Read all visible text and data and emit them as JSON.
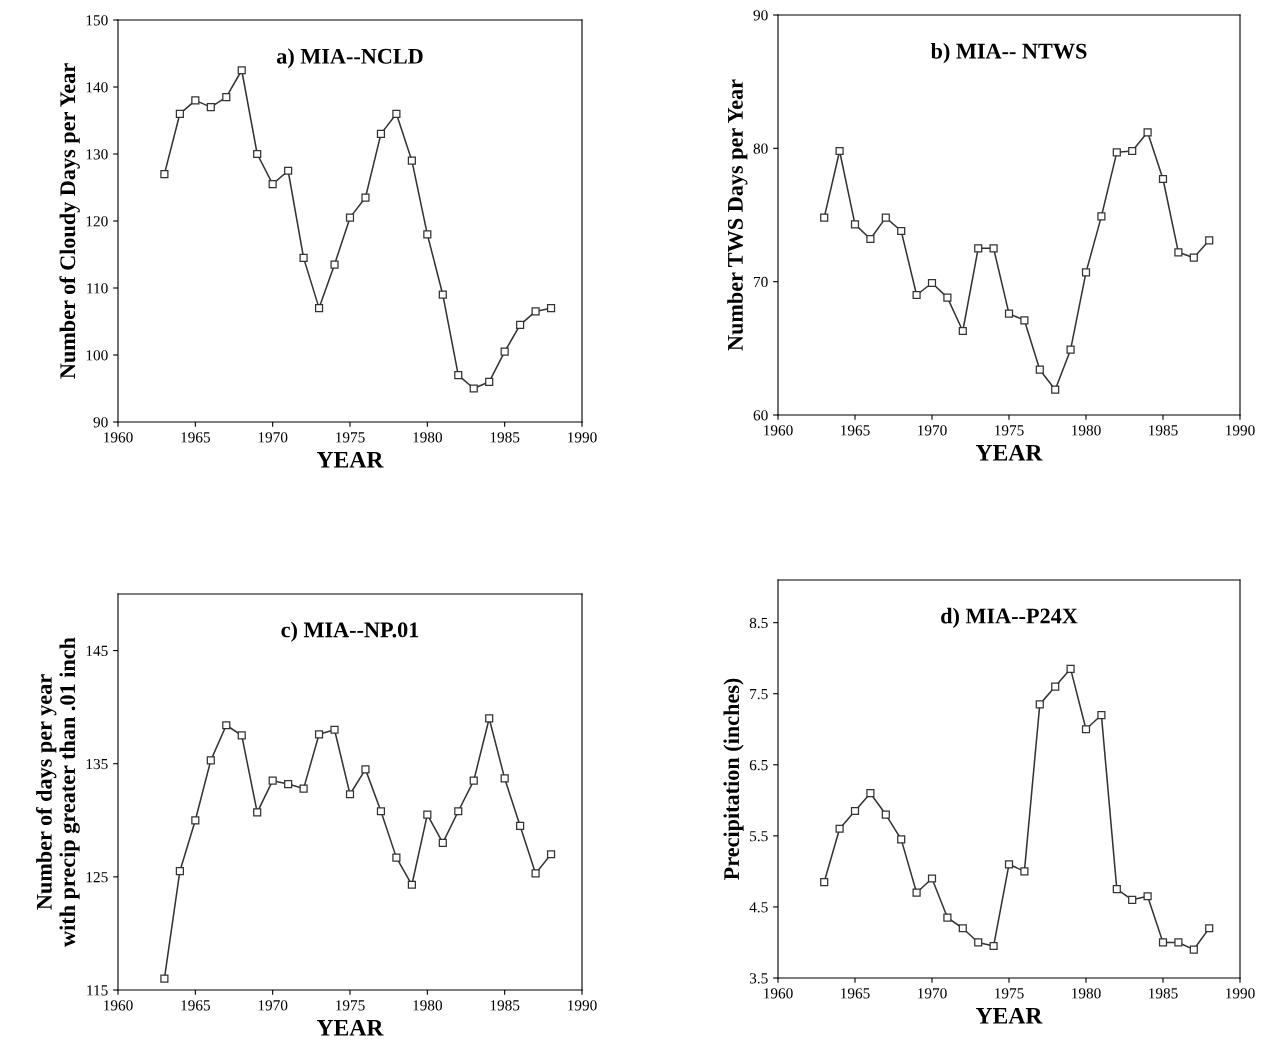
{
  "chart_data": [
    {
      "type": "line",
      "title": "a) MIA--NCLD",
      "xlabel": "YEAR",
      "ylabel": "Number of Cloudy Days per Year",
      "x": [
        1963,
        1964,
        1965,
        1966,
        1967,
        1968,
        1969,
        1970,
        1971,
        1972,
        1973,
        1974,
        1975,
        1976,
        1977,
        1978,
        1979,
        1980,
        1981,
        1982,
        1983,
        1984,
        1985,
        1986,
        1987,
        1988
      ],
      "series": [
        {
          "color": "#333333",
          "values": [
            127,
            136,
            138,
            137,
            138.5,
            142.5,
            130,
            125.5,
            127.5,
            114.5,
            107,
            113.5,
            120.5,
            123.5,
            133,
            136,
            129,
            118,
            109,
            97,
            95,
            96,
            100.5,
            104.5,
            106.5,
            107
          ]
        }
      ],
      "xlim": [
        1960,
        1990
      ],
      "xticks": [
        1960,
        1965,
        1970,
        1975,
        1980,
        1985,
        1990
      ],
      "ylim": [
        90,
        150
      ],
      "yticks": [
        90,
        100,
        110,
        120,
        130,
        140,
        150
      ],
      "marker": "square",
      "line_style": "solid",
      "grid": false
    },
    {
      "type": "line",
      "title": "b) MIA-- NTWS",
      "xlabel": "YEAR",
      "ylabel": "Number TWS Days per Year",
      "x": [
        1963,
        1964,
        1965,
        1966,
        1967,
        1968,
        1969,
        1970,
        1971,
        1972,
        1973,
        1974,
        1975,
        1976,
        1977,
        1978,
        1979,
        1980,
        1981,
        1982,
        1983,
        1984,
        1985,
        1986,
        1987,
        1988
      ],
      "series": [
        {
          "color": "#333333",
          "values": [
            74.8,
            79.8,
            74.3,
            73.2,
            74.8,
            73.8,
            69,
            69.9,
            68.8,
            66.3,
            72.5,
            72.5,
            67.6,
            67.1,
            63.4,
            61.9,
            64.9,
            70.7,
            74.9,
            79.7,
            79.8,
            81.2,
            77.7,
            72.2,
            71.8,
            73.1
          ]
        }
      ],
      "xlim": [
        1960,
        1990
      ],
      "xticks": [
        1960,
        1965,
        1970,
        1975,
        1980,
        1985,
        1990
      ],
      "ylim": [
        60,
        90
      ],
      "yticks": [
        60,
        70,
        80,
        90
      ],
      "marker": "square",
      "line_style": "solid",
      "grid": false
    },
    {
      "type": "line",
      "title": "c) MIA--NP.01",
      "xlabel": "YEAR",
      "ylabel": "Number of days per year\nwith precip greater than .01 inch",
      "x": [
        1963,
        1964,
        1965,
        1966,
        1967,
        1968,
        1969,
        1970,
        1971,
        1972,
        1973,
        1974,
        1975,
        1976,
        1977,
        1978,
        1979,
        1980,
        1981,
        1982,
        1983,
        1984,
        1985,
        1986,
        1987,
        1988
      ],
      "series": [
        {
          "color": "#333333",
          "values": [
            116,
            125.5,
            130,
            135.3,
            138.4,
            137.5,
            130.7,
            133.5,
            133.2,
            132.8,
            137.6,
            138,
            132.3,
            134.5,
            130.8,
            126.7,
            124.3,
            130.5,
            128,
            130.8,
            133.5,
            139,
            133.7,
            129.5,
            125.3,
            127
          ]
        }
      ],
      "xlim": [
        1960,
        1990
      ],
      "xticks": [
        1960,
        1965,
        1970,
        1975,
        1980,
        1985,
        1990
      ],
      "ylim": [
        115,
        150
      ],
      "yticks": [
        115,
        125,
        135,
        145
      ],
      "marker": "square",
      "line_style": "solid",
      "grid": false
    },
    {
      "type": "line",
      "title": "d) MIA--P24X",
      "xlabel": "YEAR",
      "ylabel": "Precipitation (inches)",
      "x": [
        1963,
        1964,
        1965,
        1966,
        1967,
        1968,
        1969,
        1970,
        1971,
        1972,
        1973,
        1974,
        1975,
        1976,
        1977,
        1978,
        1979,
        1980,
        1981,
        1982,
        1983,
        1984,
        1985,
        1986,
        1987,
        1988
      ],
      "series": [
        {
          "color": "#333333",
          "values": [
            4.85,
            5.6,
            5.85,
            6.1,
            5.8,
            5.45,
            4.7,
            4.9,
            4.35,
            4.2,
            4.0,
            3.95,
            5.1,
            5.0,
            7.35,
            7.6,
            7.85,
            7.0,
            7.2,
            4.75,
            4.6,
            4.65,
            4.0,
            4.0,
            3.9,
            4.2
          ]
        }
      ],
      "xlim": [
        1960,
        1990
      ],
      "xticks": [
        1960,
        1965,
        1970,
        1975,
        1980,
        1985,
        1990
      ],
      "ylim": [
        3.5,
        9.1
      ],
      "yticks": [
        3.5,
        4.5,
        5.5,
        6.5,
        7.5,
        8.5
      ],
      "marker": "square",
      "line_style": "solid",
      "grid": false
    }
  ]
}
